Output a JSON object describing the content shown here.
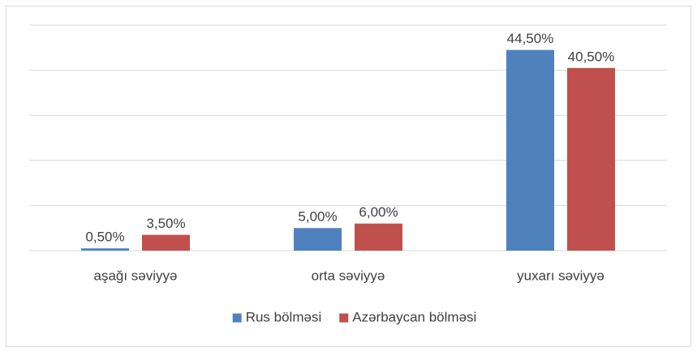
{
  "chart_data": {
    "type": "bar",
    "categories": [
      "aşağı səviyyə",
      "orta səviyyə",
      "yuxarı səviyyə"
    ],
    "series": [
      {
        "name": "Rus bölməsi",
        "color": "#4f81bd",
        "values": [
          0.5,
          5,
          44.5
        ],
        "value_labels": [
          "0,50%",
          "5,00%",
          "44,50%"
        ]
      },
      {
        "name": "Azərbaycan bölməsi",
        "color": "#c0504d",
        "values": [
          3.5,
          6,
          40.5
        ],
        "value_labels": [
          "3,50%",
          "6,00%",
          "40,50%"
        ]
      }
    ],
    "ylim": [
      0,
      50
    ],
    "yticks": [
      0,
      10,
      20,
      30,
      40,
      50
    ],
    "grid": true,
    "legend": "bottom"
  }
}
